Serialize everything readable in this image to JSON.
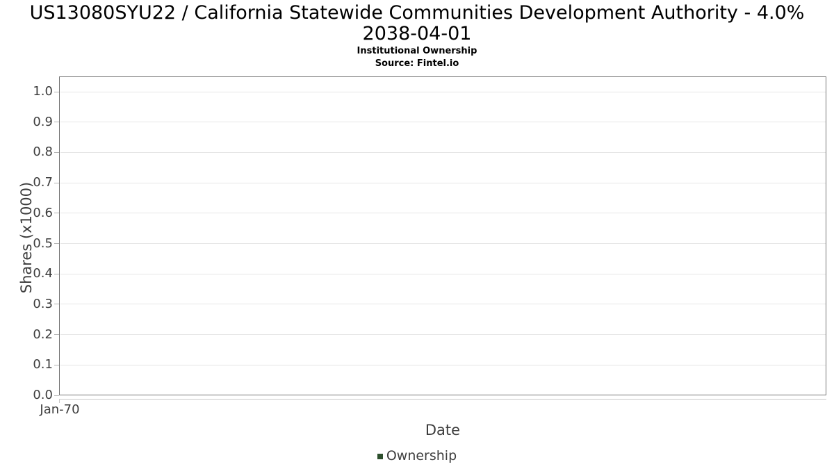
{
  "title": {
    "line1": "US13080SYU22 / California Statewide Communities Development Authority - 4.0%",
    "line2": "2038-04-01"
  },
  "subtitle": "Institutional Ownership",
  "source": "Source: Fintel.io",
  "legend": {
    "items": [
      {
        "label": "Ownership",
        "color": "#2d4f2d"
      }
    ]
  },
  "colors": {
    "background": "#ffffff",
    "title_text": "#000000",
    "axis_text": "#3d3d3d",
    "plot_border": "#757575",
    "gridline": "#e6e6e6",
    "axis_line": "#c8c8c8",
    "legend_marker": "#2d4f2d"
  },
  "chart_data": {
    "type": "line",
    "title": "US13080SYU22 / California Statewide Communities Development Authority - 4.0% 2038-04-01",
    "subtitle": "Institutional Ownership",
    "source": "Source: Fintel.io",
    "xlabel": "Date",
    "ylabel": "Shares (x1000)",
    "ylim": [
      0.0,
      1.05
    ],
    "ytick_labels": [
      "1.0",
      "0.9",
      "0.8",
      "0.7",
      "0.6",
      "0.5",
      "0.4",
      "0.3",
      "0.2",
      "0.1",
      "0.0"
    ],
    "xtick_labels": [
      "Jan-70"
    ],
    "grid": "horizontal-only",
    "legend_position": "bottom-center",
    "series": [
      {
        "name": "Ownership",
        "color": "#2d4f2d",
        "x": [],
        "values": []
      }
    ]
  }
}
